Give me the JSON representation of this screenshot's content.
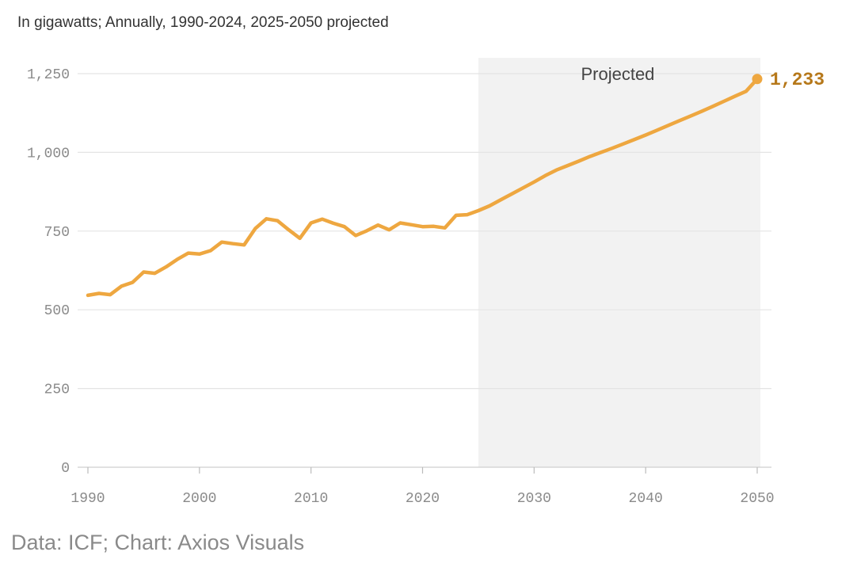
{
  "subtitle": "In gigawatts; Annually, 1990-2024, 2025-2050 projected",
  "source": "Data: ICF; Chart: Axios Visuals",
  "colors": {
    "line": "#eea740",
    "end_label": "#b6781a",
    "projected_band": "#f2f2f2",
    "grid": "#e4e4e4",
    "tick_text": "#8a8a8a"
  },
  "chart_data": {
    "type": "line",
    "title": "",
    "subtitle": "In gigawatts; Annually, 1990-2024, 2025-2050 projected",
    "xlabel": "",
    "ylabel": "",
    "xlim": [
      1990,
      2050
    ],
    "ylim": [
      0,
      1250
    ],
    "x_ticks": [
      {
        "value": 1990,
        "label": "1990"
      },
      {
        "value": 2000,
        "label": "2000"
      },
      {
        "value": 2010,
        "label": "2010"
      },
      {
        "value": 2020,
        "label": "2020"
      },
      {
        "value": 2030,
        "label": "2030"
      },
      {
        "value": 2040,
        "label": "2040"
      },
      {
        "value": 2050,
        "label": "2050"
      }
    ],
    "y_ticks": [
      {
        "value": 0,
        "label": "0"
      },
      {
        "value": 250,
        "label": "250"
      },
      {
        "value": 500,
        "label": "500"
      },
      {
        "value": 750,
        "label": "750"
      },
      {
        "value": 1000,
        "label": "1,000"
      },
      {
        "value": 1250,
        "label": "1,250"
      }
    ],
    "grid": true,
    "projected_region": {
      "start": 2025,
      "end": 2050,
      "label": "Projected"
    },
    "end_annotation": {
      "x": 2050,
      "y": 1233,
      "label": "1,233"
    },
    "x": [
      1990,
      1991,
      1992,
      1993,
      1994,
      1995,
      1996,
      1997,
      1998,
      1999,
      2000,
      2001,
      2002,
      2003,
      2004,
      2005,
      2006,
      2007,
      2008,
      2009,
      2010,
      2011,
      2012,
      2013,
      2014,
      2015,
      2016,
      2017,
      2018,
      2019,
      2020,
      2021,
      2022,
      2023,
      2024,
      2025,
      2026,
      2027,
      2028,
      2029,
      2030,
      2031,
      2032,
      2033,
      2034,
      2035,
      2036,
      2037,
      2038,
      2039,
      2040,
      2041,
      2042,
      2043,
      2044,
      2045,
      2046,
      2047,
      2048,
      2049,
      2050
    ],
    "values": [
      546,
      552,
      548,
      575,
      587,
      620,
      616,
      636,
      660,
      680,
      677,
      688,
      715,
      710,
      706,
      758,
      789,
      783,
      754,
      727,
      776,
      788,
      775,
      764,
      736,
      751,
      769,
      754,
      776,
      770,
      764,
      765,
      760,
      800,
      802,
      815,
      830,
      849,
      868,
      887,
      906,
      926,
      944,
      958,
      972,
      987,
      1000,
      1013,
      1027,
      1041,
      1055,
      1070,
      1085,
      1100,
      1115,
      1130,
      1146,
      1162,
      1178,
      1194,
      1233
    ]
  }
}
